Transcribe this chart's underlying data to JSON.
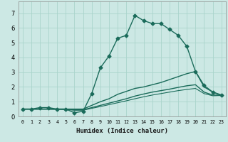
{
  "xlabel": "Humidex (Indice chaleur)",
  "background_color": "#cce8e4",
  "grid_color": "#aad4cc",
  "line_color": "#1a6b5a",
  "xlim": [
    -0.5,
    23.5
  ],
  "ylim": [
    0,
    7.8
  ],
  "xticks": [
    0,
    1,
    2,
    3,
    4,
    5,
    6,
    7,
    8,
    9,
    10,
    11,
    12,
    13,
    14,
    15,
    16,
    17,
    18,
    19,
    20,
    21,
    22,
    23
  ],
  "yticks": [
    0,
    1,
    2,
    3,
    4,
    5,
    6,
    7
  ],
  "series": [
    {
      "x": [
        0,
        1,
        2,
        3,
        4,
        5,
        6,
        7,
        8,
        9,
        10,
        11,
        12,
        13,
        14,
        15,
        16,
        17,
        18,
        19,
        20,
        21,
        22,
        23
      ],
      "y": [
        0.5,
        0.5,
        0.6,
        0.6,
        0.5,
        0.5,
        0.25,
        0.35,
        1.55,
        3.3,
        4.1,
        5.3,
        5.5,
        6.85,
        6.5,
        6.3,
        6.3,
        5.9,
        5.5,
        4.75,
        3.05,
        2.1,
        1.65,
        1.45
      ],
      "marker": "D",
      "markersize": 2.5,
      "linestyle": "-",
      "linewidth": 1.0
    },
    {
      "x": [
        0,
        1,
        2,
        3,
        4,
        5,
        6,
        7,
        8,
        9,
        10,
        11,
        12,
        13,
        14,
        15,
        16,
        17,
        18,
        19,
        20,
        21,
        22,
        23
      ],
      "y": [
        0.5,
        0.5,
        0.5,
        0.5,
        0.5,
        0.5,
        0.5,
        0.5,
        0.75,
        1.0,
        1.2,
        1.5,
        1.7,
        1.9,
        2.0,
        2.15,
        2.3,
        2.5,
        2.7,
        2.9,
        3.05,
        2.0,
        1.65,
        1.45
      ],
      "marker": null,
      "markersize": 0,
      "linestyle": "-",
      "linewidth": 1.0
    },
    {
      "x": [
        0,
        1,
        2,
        3,
        4,
        5,
        6,
        7,
        8,
        9,
        10,
        11,
        12,
        13,
        14,
        15,
        16,
        17,
        18,
        19,
        20,
        21,
        22,
        23
      ],
      "y": [
        0.5,
        0.5,
        0.5,
        0.5,
        0.5,
        0.5,
        0.45,
        0.45,
        0.6,
        0.75,
        0.9,
        1.05,
        1.2,
        1.38,
        1.52,
        1.65,
        1.75,
        1.85,
        1.97,
        2.08,
        2.15,
        1.65,
        1.45,
        1.45
      ],
      "marker": null,
      "markersize": 0,
      "linestyle": "-",
      "linewidth": 1.0
    },
    {
      "x": [
        0,
        1,
        2,
        3,
        4,
        5,
        6,
        7,
        8,
        9,
        10,
        11,
        12,
        13,
        14,
        15,
        16,
        17,
        18,
        19,
        20,
        21,
        22,
        23
      ],
      "y": [
        0.5,
        0.5,
        0.5,
        0.5,
        0.48,
        0.47,
        0.42,
        0.42,
        0.55,
        0.67,
        0.8,
        0.93,
        1.06,
        1.2,
        1.33,
        1.45,
        1.55,
        1.65,
        1.75,
        1.83,
        1.9,
        1.55,
        1.4,
        1.42
      ],
      "marker": null,
      "markersize": 0,
      "linestyle": "-",
      "linewidth": 0.8
    }
  ]
}
